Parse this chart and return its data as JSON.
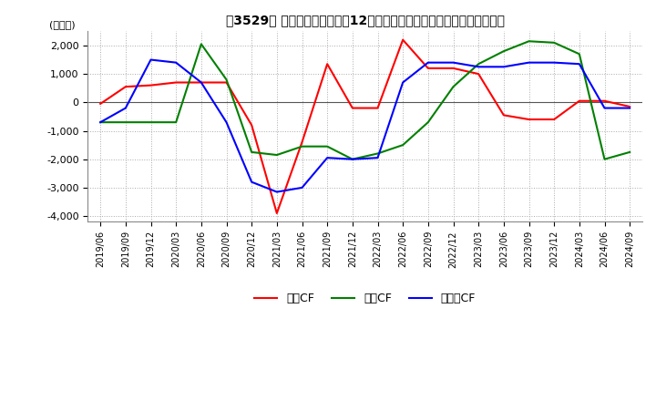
{
  "title": "【3529】 キャッシュフローの12か月移動合計の対前年同期増減額の推移",
  "ylabel": "(百万円)",
  "ylim": [
    -4200,
    2500
  ],
  "yticks": [
    -4000,
    -3000,
    -2000,
    -1000,
    0,
    1000,
    2000
  ],
  "background_color": "#ffffff",
  "grid_color": "#aaaaaa",
  "legend": [
    "営業CF",
    "投資CF",
    "フリーCF"
  ],
  "legend_colors": [
    "#ff0000",
    "#008000",
    "#0000ff"
  ],
  "x_labels": [
    "2019/06",
    "2019/09",
    "2019/12",
    "2020/03",
    "2020/06",
    "2020/09",
    "2020/12",
    "2021/03",
    "2021/06",
    "2021/09",
    "2021/12",
    "2022/03",
    "2022/06",
    "2022/09",
    "2022/12",
    "2023/03",
    "2023/06",
    "2023/09",
    "2023/12",
    "2024/03",
    "2024/06",
    "2024/09"
  ],
  "eigyo_cf": [
    -50,
    550,
    600,
    700,
    700,
    700,
    -800,
    -3900,
    -1400,
    1350,
    -200,
    -200,
    2200,
    1200,
    1200,
    1000,
    -450,
    -600,
    -600,
    50,
    50,
    -150
  ],
  "toshi_cf": [
    -700,
    -700,
    -700,
    -700,
    2050,
    800,
    -1750,
    -1850,
    -1550,
    -1550,
    -2000,
    -1800,
    -1500,
    -700,
    550,
    1350,
    1800,
    2150,
    2100,
    1700,
    -2000,
    -1750
  ],
  "free_cf": [
    -700,
    -200,
    1500,
    1400,
    700,
    -700,
    -2800,
    -3150,
    -3000,
    -1950,
    -2000,
    -1950,
    700,
    1400,
    1400,
    1250,
    1250,
    1400,
    1400,
    1350,
    -200,
    -200
  ]
}
